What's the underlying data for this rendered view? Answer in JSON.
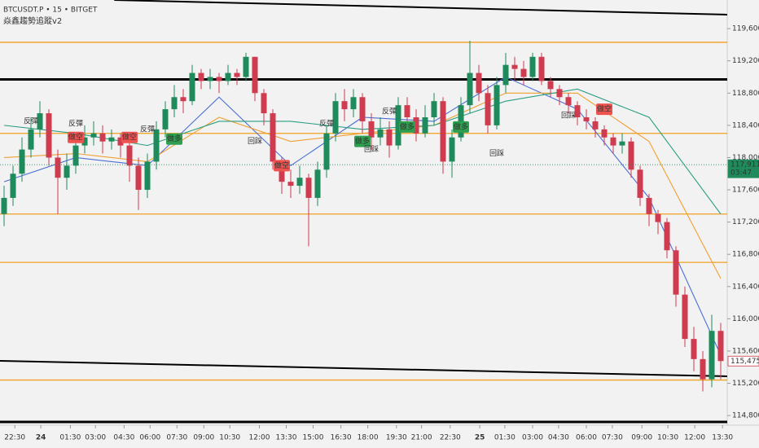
{
  "chart_data": {
    "type": "candlestick",
    "title": "BTCUSDT.P • 15 • BITGET",
    "subtitle": "焱鑫趨勢追蹤v2",
    "up_color": "#1f8a5b",
    "down_color": "#cf3b4f",
    "ylim": [
      114680,
      119955
    ],
    "xlim": [
      -0.5,
      81
    ],
    "yticks": [
      {
        "value": 119600,
        "label": "119,600.0"
      },
      {
        "value": 119200,
        "label": "119,200.0"
      },
      {
        "value": 118800,
        "label": "118,800.0"
      },
      {
        "value": 118400,
        "label": "118,400.0"
      },
      {
        "value": 118000,
        "label": "118,000.0"
      },
      {
        "value": 117600,
        "label": "117,600.0"
      },
      {
        "value": 117200,
        "label": "117,200.0"
      },
      {
        "value": 116800,
        "label": "116,800.0"
      },
      {
        "value": 116400,
        "label": "116,400.0"
      },
      {
        "value": 116000,
        "label": "116,000.0"
      },
      {
        "value": 115600,
        "label": "115,600.0"
      },
      {
        "value": 115200,
        "label": "115,200.0"
      },
      {
        "value": 114800,
        "label": "114,800.0"
      }
    ],
    "xticks": [
      {
        "value": 1.2,
        "label": "22:30"
      },
      {
        "value": 4.1,
        "label": "24",
        "bold": true
      },
      {
        "value": 7.4,
        "label": "01:30"
      },
      {
        "value": 10.2,
        "label": "03:00"
      },
      {
        "value": 13.4,
        "label": "04:30"
      },
      {
        "value": 16.3,
        "label": "06:00"
      },
      {
        "value": 19.3,
        "label": "07:30"
      },
      {
        "value": 22.3,
        "label": "09:00"
      },
      {
        "value": 25.2,
        "label": "10:30"
      },
      {
        "value": 28.5,
        "label": "12:00"
      },
      {
        "value": 31.5,
        "label": "13:30"
      },
      {
        "value": 34.5,
        "label": "15:00"
      },
      {
        "value": 37.6,
        "label": "16:30"
      },
      {
        "value": 40.6,
        "label": "18:00"
      },
      {
        "value": 43.8,
        "label": "19:30"
      },
      {
        "value": 46.6,
        "label": "21:00"
      },
      {
        "value": 49.8,
        "label": "22:30"
      },
      {
        "value": 53.1,
        "label": "25",
        "bold": true
      },
      {
        "value": 55.9,
        "label": "01:30"
      },
      {
        "value": 59,
        "label": "03:00"
      },
      {
        "value": 61.9,
        "label": "04:30"
      },
      {
        "value": 65,
        "label": "06:00"
      },
      {
        "value": 67.9,
        "label": "07:30"
      },
      {
        "value": 71.2,
        "label": "09:00"
      },
      {
        "value": 74.1,
        "label": "10:30"
      },
      {
        "value": 77.1,
        "label": "12:00"
      },
      {
        "value": 80.2,
        "label": "13:30"
      }
    ],
    "open": [
      117300,
      117500,
      117800,
      118100,
      118350,
      118550,
      118000,
      117750,
      117900,
      118150,
      118250,
      118300,
      118200,
      118250,
      118150,
      117900,
      117600,
      117950,
      118350,
      118600,
      118750,
      118700,
      119050,
      118950,
      119000,
      118950,
      119050,
      119000,
      119250,
      118800,
      118550,
      117950,
      117700,
      117650,
      117750,
      117500,
      117850,
      118300,
      118700,
      118600,
      118750,
      118450,
      118250,
      118350,
      118150,
      118650,
      118500,
      118300,
      118500,
      118700,
      117950,
      118250,
      118650,
      119050,
      118800,
      118400,
      118900,
      119150,
      119100,
      119000,
      119250,
      118950,
      118850,
      118750,
      118650,
      118500,
      118450,
      118350,
      118250,
      118150,
      118200,
      117850,
      117500,
      117300,
      117200,
      116850,
      116300,
      115750,
      115500,
      115250,
      115850
    ],
    "high": [
      117650,
      117900,
      118250,
      118500,
      118700,
      118600,
      118100,
      118050,
      118250,
      118400,
      118450,
      118400,
      118350,
      118300,
      118250,
      118000,
      118050,
      118450,
      118700,
      118900,
      118850,
      119150,
      119100,
      119100,
      119050,
      119150,
      119100,
      119300,
      119250,
      118850,
      118600,
      118000,
      117850,
      117900,
      117800,
      117950,
      118400,
      118800,
      118850,
      118850,
      118800,
      118550,
      118500,
      118450,
      118750,
      118750,
      118600,
      118650,
      118800,
      118750,
      118350,
      118750,
      119450,
      119150,
      118900,
      119000,
      119300,
      119250,
      119200,
      119300,
      119300,
      119000,
      118900,
      118800,
      118700,
      118600,
      118500,
      118400,
      118300,
      118300,
      118250,
      117900,
      117550,
      117350,
      117250,
      116900,
      116400,
      115900,
      115600,
      116050,
      115950
    ],
    "low": [
      117150,
      117400,
      117700,
      118000,
      118250,
      117900,
      117300,
      117600,
      117800,
      118050,
      118150,
      118050,
      118100,
      118000,
      117700,
      117350,
      117500,
      117850,
      118250,
      118500,
      118550,
      118650,
      118850,
      118850,
      118800,
      118900,
      118900,
      118950,
      118700,
      118400,
      117850,
      117550,
      117500,
      117550,
      116900,
      117400,
      117750,
      118200,
      118450,
      118500,
      118300,
      118100,
      118150,
      118000,
      118100,
      118400,
      118200,
      118250,
      118400,
      117800,
      117750,
      118200,
      118550,
      118700,
      118300,
      118350,
      118800,
      118950,
      118900,
      118950,
      118900,
      118750,
      118650,
      118550,
      118400,
      118350,
      118250,
      118150,
      118050,
      118050,
      117750,
      117400,
      117150,
      117050,
      116750,
      116150,
      115650,
      115350,
      115100,
      115150,
      115250
    ],
    "close": [
      117500,
      117800,
      118100,
      118350,
      118550,
      118000,
      117750,
      117900,
      118150,
      118250,
      118300,
      118200,
      118250,
      118150,
      117900,
      117600,
      117950,
      118350,
      118600,
      118750,
      118700,
      119050,
      118950,
      119000,
      118950,
      119050,
      119000,
      119250,
      118800,
      118550,
      117950,
      117700,
      117650,
      117750,
      117500,
      117850,
      118300,
      118700,
      118600,
      118750,
      118450,
      118250,
      118350,
      118150,
      118650,
      118500,
      118300,
      118500,
      118700,
      117950,
      118250,
      118650,
      119050,
      118800,
      118400,
      118900,
      119150,
      119100,
      119000,
      119250,
      118950,
      118850,
      118750,
      118650,
      118500,
      118450,
      118350,
      118250,
      118150,
      118200,
      117850,
      117500,
      117300,
      117200,
      116850,
      116300,
      115750,
      115500,
      115250,
      115850,
      115475.5
    ],
    "series": [
      {
        "color": "#4a6fd6",
        "x": [
          0,
          8,
          16,
          24,
          32,
          40,
          48,
          56,
          64,
          72,
          80
        ],
        "values": [
          117700,
          118000,
          117900,
          118750,
          117900,
          118500,
          118450,
          119000,
          118600,
          117500,
          115550
        ]
      },
      {
        "color": "#f0a030",
        "x": [
          0,
          8,
          16,
          24,
          32,
          40,
          48,
          56,
          64,
          72,
          80
        ],
        "values": [
          118000,
          118050,
          117950,
          118500,
          118200,
          118300,
          118400,
          118800,
          118800,
          118200,
          116500
        ]
      },
      {
        "color": "#2a9d82",
        "x": [
          0,
          8,
          16,
          24,
          32,
          40,
          48,
          56,
          64,
          72,
          80
        ],
        "values": [
          118400,
          118300,
          118150,
          118450,
          118450,
          118350,
          118400,
          118700,
          118850,
          118500,
          117300
        ]
      }
    ],
    "levels": [
      {
        "value": 119430,
        "color": "#f0a020",
        "width": 1.3
      },
      {
        "value": 118970,
        "color": "#000000",
        "width": 3
      },
      {
        "value": 118300,
        "color": "#f0a020",
        "width": 1.3
      },
      {
        "value": 117300,
        "color": "#f0a020",
        "width": 1.3
      },
      {
        "value": 116700,
        "color": "#f0a020",
        "width": 1.3
      },
      {
        "value": 115240,
        "color": "#f0a020",
        "width": 1.3
      },
      {
        "value": 114720,
        "color": "#000000",
        "width": 3
      }
    ],
    "trendlines": [
      {
        "x": [
          12.3,
          81
        ],
        "values": [
          119955,
          119773
        ],
        "color": "#000000"
      },
      {
        "x": [
          -0.5,
          81
        ],
        "values": [
          115478,
          115286
        ],
        "color": "#000000"
      }
    ],
    "annotations": [
      {
        "text": "反彈",
        "x": 3,
        "value": 118450,
        "kind": "text"
      },
      {
        "text": "反彈",
        "x": 8,
        "value": 118420,
        "kind": "text"
      },
      {
        "text": "做空",
        "x": 8,
        "value": 118250,
        "kind": "short"
      },
      {
        "text": "做空",
        "x": 14,
        "value": 118250,
        "kind": "short"
      },
      {
        "text": "反彈",
        "x": 16,
        "value": 118350,
        "kind": "text"
      },
      {
        "text": "做多",
        "x": 19,
        "value": 118230,
        "kind": "long"
      },
      {
        "text": "回踩",
        "x": 28,
        "value": 118200,
        "kind": "text"
      },
      {
        "text": "做空",
        "x": 31,
        "value": 117900,
        "kind": "short"
      },
      {
        "text": "反彈",
        "x": 36,
        "value": 118420,
        "kind": "text"
      },
      {
        "text": "做多",
        "x": 40,
        "value": 118200,
        "kind": "long"
      },
      {
        "text": "回踩",
        "x": 41,
        "value": 118100,
        "kind": "text"
      },
      {
        "text": "反彈",
        "x": 43,
        "value": 118570,
        "kind": "text"
      },
      {
        "text": "做多",
        "x": 45,
        "value": 118380,
        "kind": "long"
      },
      {
        "text": "做多",
        "x": 51,
        "value": 118380,
        "kind": "long"
      },
      {
        "text": "回踩",
        "x": 55,
        "value": 118050,
        "kind": "text"
      },
      {
        "text": "回踩",
        "x": 63,
        "value": 118520,
        "kind": "text"
      },
      {
        "text": "做空",
        "x": 67,
        "value": 118600,
        "kind": "short"
      }
    ],
    "price_tags": [
      {
        "value": 117911.8,
        "label": "117,911.8",
        "sub": "03:47",
        "color": "#1f8a5b",
        "filled": true
      },
      {
        "value": 115475.5,
        "label": "115,475.5",
        "color": "#cf3b4f",
        "filled": false
      }
    ]
  }
}
